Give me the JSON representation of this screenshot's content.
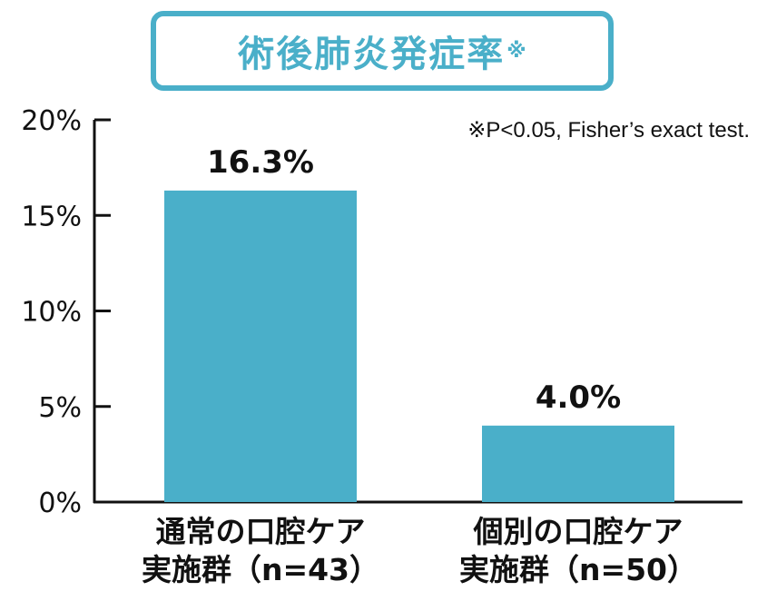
{
  "chart_data": {
    "type": "bar",
    "title": "術後肺炎発症率",
    "title_mark": "※",
    "note": "※P<0.05, Fisher’s exact test.",
    "categories": [
      [
        "通常の口腔ケア",
        "実施群（n=43）"
      ],
      [
        "個別の口腔ケア",
        "実施群（n=50）"
      ]
    ],
    "values": [
      16.3,
      4.0
    ],
    "value_labels": [
      "16.3%",
      "4.0%"
    ],
    "ylim": [
      0,
      20
    ],
    "yticks": [
      0,
      5,
      10,
      15,
      20
    ],
    "ytick_labels": [
      "0%",
      "5%",
      "10%",
      "15%",
      "20%"
    ],
    "xlabel": "",
    "ylabel": "",
    "bar_color": "#4aafc9",
    "grid": false,
    "legend": "none"
  }
}
